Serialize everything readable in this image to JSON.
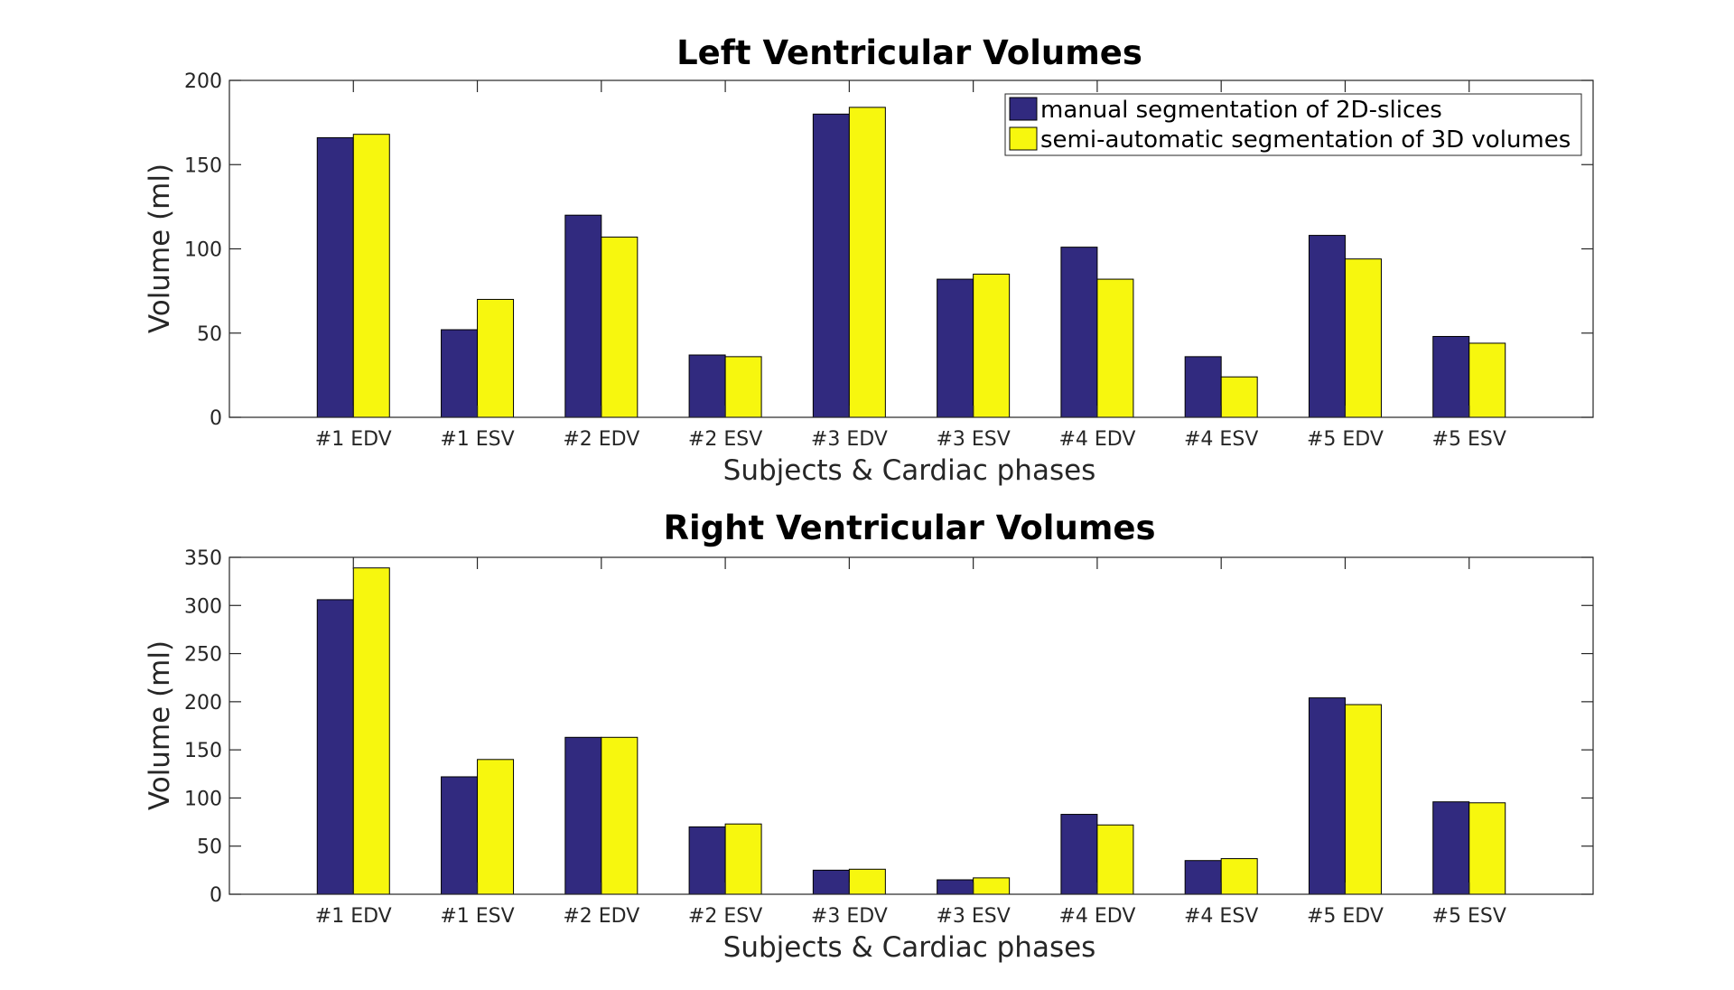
{
  "colors": {
    "series_1": "#312a7f",
    "series_2": "#f7f70e",
    "axis": "#262626",
    "bar_edge": "#000000",
    "background": "#ffffff"
  },
  "legend": {
    "items": [
      "manual segmentation of 2D-slices",
      "semi-automatic segmentation of 3D volumes"
    ],
    "location": "top-right"
  },
  "chart_data": [
    {
      "type": "bar",
      "title": "Left Ventricular Volumes",
      "xlabel": "Subjects & Cardiac phases",
      "ylabel": "Volume (ml)",
      "ylim": [
        0,
        200
      ],
      "yticks": [
        0,
        50,
        100,
        150,
        200
      ],
      "categories": [
        "#1 EDV",
        "#1 ESV",
        "#2 EDV",
        "#2 ESV",
        "#3 EDV",
        "#3 ESV",
        "#4 EDV",
        "#4 ESV",
        "#5 EDV",
        "#5 ESV"
      ],
      "series": [
        {
          "name": "manual segmentation of 2D-slices",
          "values": [
            166,
            52,
            120,
            37,
            180,
            82,
            101,
            36,
            108,
            48
          ]
        },
        {
          "name": "semi-automatic segmentation of 3D volumes",
          "values": [
            168,
            70,
            107,
            36,
            184,
            85,
            82,
            24,
            94,
            44
          ]
        }
      ],
      "grid": false,
      "legend": "top-right"
    },
    {
      "type": "bar",
      "title": "Right Ventricular Volumes",
      "xlabel": "Subjects & Cardiac phases",
      "ylabel": "Volume (ml)",
      "ylim": [
        0,
        350
      ],
      "yticks": [
        0,
        50,
        100,
        150,
        200,
        250,
        300,
        350
      ],
      "categories": [
        "#1 EDV",
        "#1 ESV",
        "#2 EDV",
        "#2 ESV",
        "#3 EDV",
        "#3 ESV",
        "#4 EDV",
        "#4 ESV",
        "#5 EDV",
        "#5 ESV"
      ],
      "series": [
        {
          "name": "manual segmentation of 2D-slices",
          "values": [
            306,
            122,
            163,
            70,
            25,
            15,
            83,
            35,
            204,
            96
          ]
        },
        {
          "name": "semi-automatic segmentation of 3D volumes",
          "values": [
            339,
            140,
            163,
            73,
            26,
            17,
            72,
            37,
            197,
            95
          ]
        }
      ],
      "grid": false,
      "legend": "none"
    }
  ]
}
